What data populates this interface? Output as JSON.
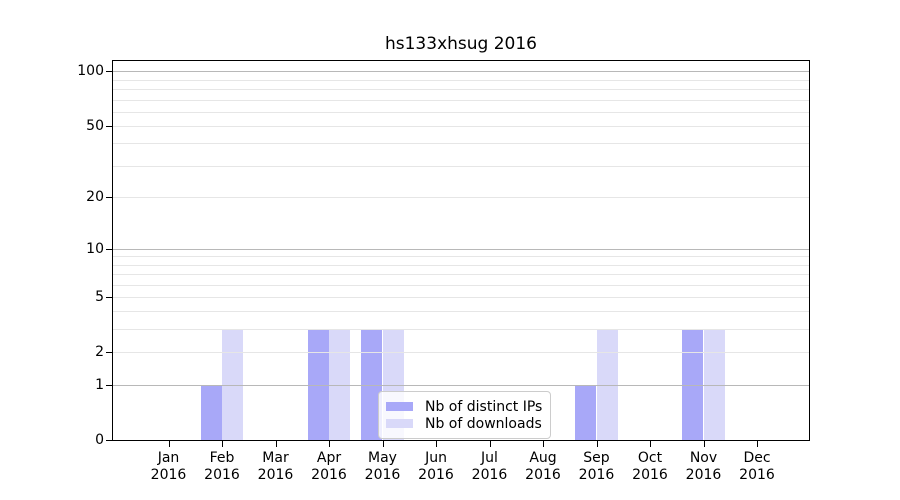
{
  "chart_data": {
    "type": "bar",
    "title": "hs133xhsug 2016",
    "categories": [
      "Jan",
      "Feb",
      "Mar",
      "Apr",
      "May",
      "Jun",
      "Jul",
      "Aug",
      "Sep",
      "Oct",
      "Nov",
      "Dec"
    ],
    "category_year": "2016",
    "series": [
      {
        "name": "Nb of distinct IPs",
        "color": "#a8a8f8",
        "values": [
          0,
          1,
          0,
          3,
          3,
          0,
          0,
          0,
          1,
          0,
          3,
          0
        ]
      },
      {
        "name": "Nb of downloads",
        "color": "#d9d9f9",
        "values": [
          0,
          3,
          0,
          3,
          3,
          0,
          0,
          0,
          3,
          0,
          3,
          0
        ]
      }
    ],
    "yscale": "log1p",
    "ylim": [
      0,
      114
    ],
    "y_tick_values": [
      0,
      1,
      2,
      5,
      10,
      20,
      50,
      100
    ],
    "y_tick_labels": [
      "0",
      "1",
      "2",
      "5",
      "10",
      "20",
      "50",
      "100"
    ],
    "y_major_gridlines": [
      1,
      10,
      100
    ],
    "y_minor_gridlines": [
      2,
      3,
      4,
      5,
      6,
      7,
      8,
      9,
      20,
      30,
      40,
      50,
      60,
      70,
      80,
      90
    ],
    "grid": true,
    "legend": {
      "location": "lower center"
    },
    "colors": {
      "major_grid": "#b8b8b8",
      "minor_grid": "#e6e6e6",
      "spine": "#000000",
      "text": "#000000",
      "background": "#ffffff",
      "legend_border": "#cccccc"
    }
  }
}
